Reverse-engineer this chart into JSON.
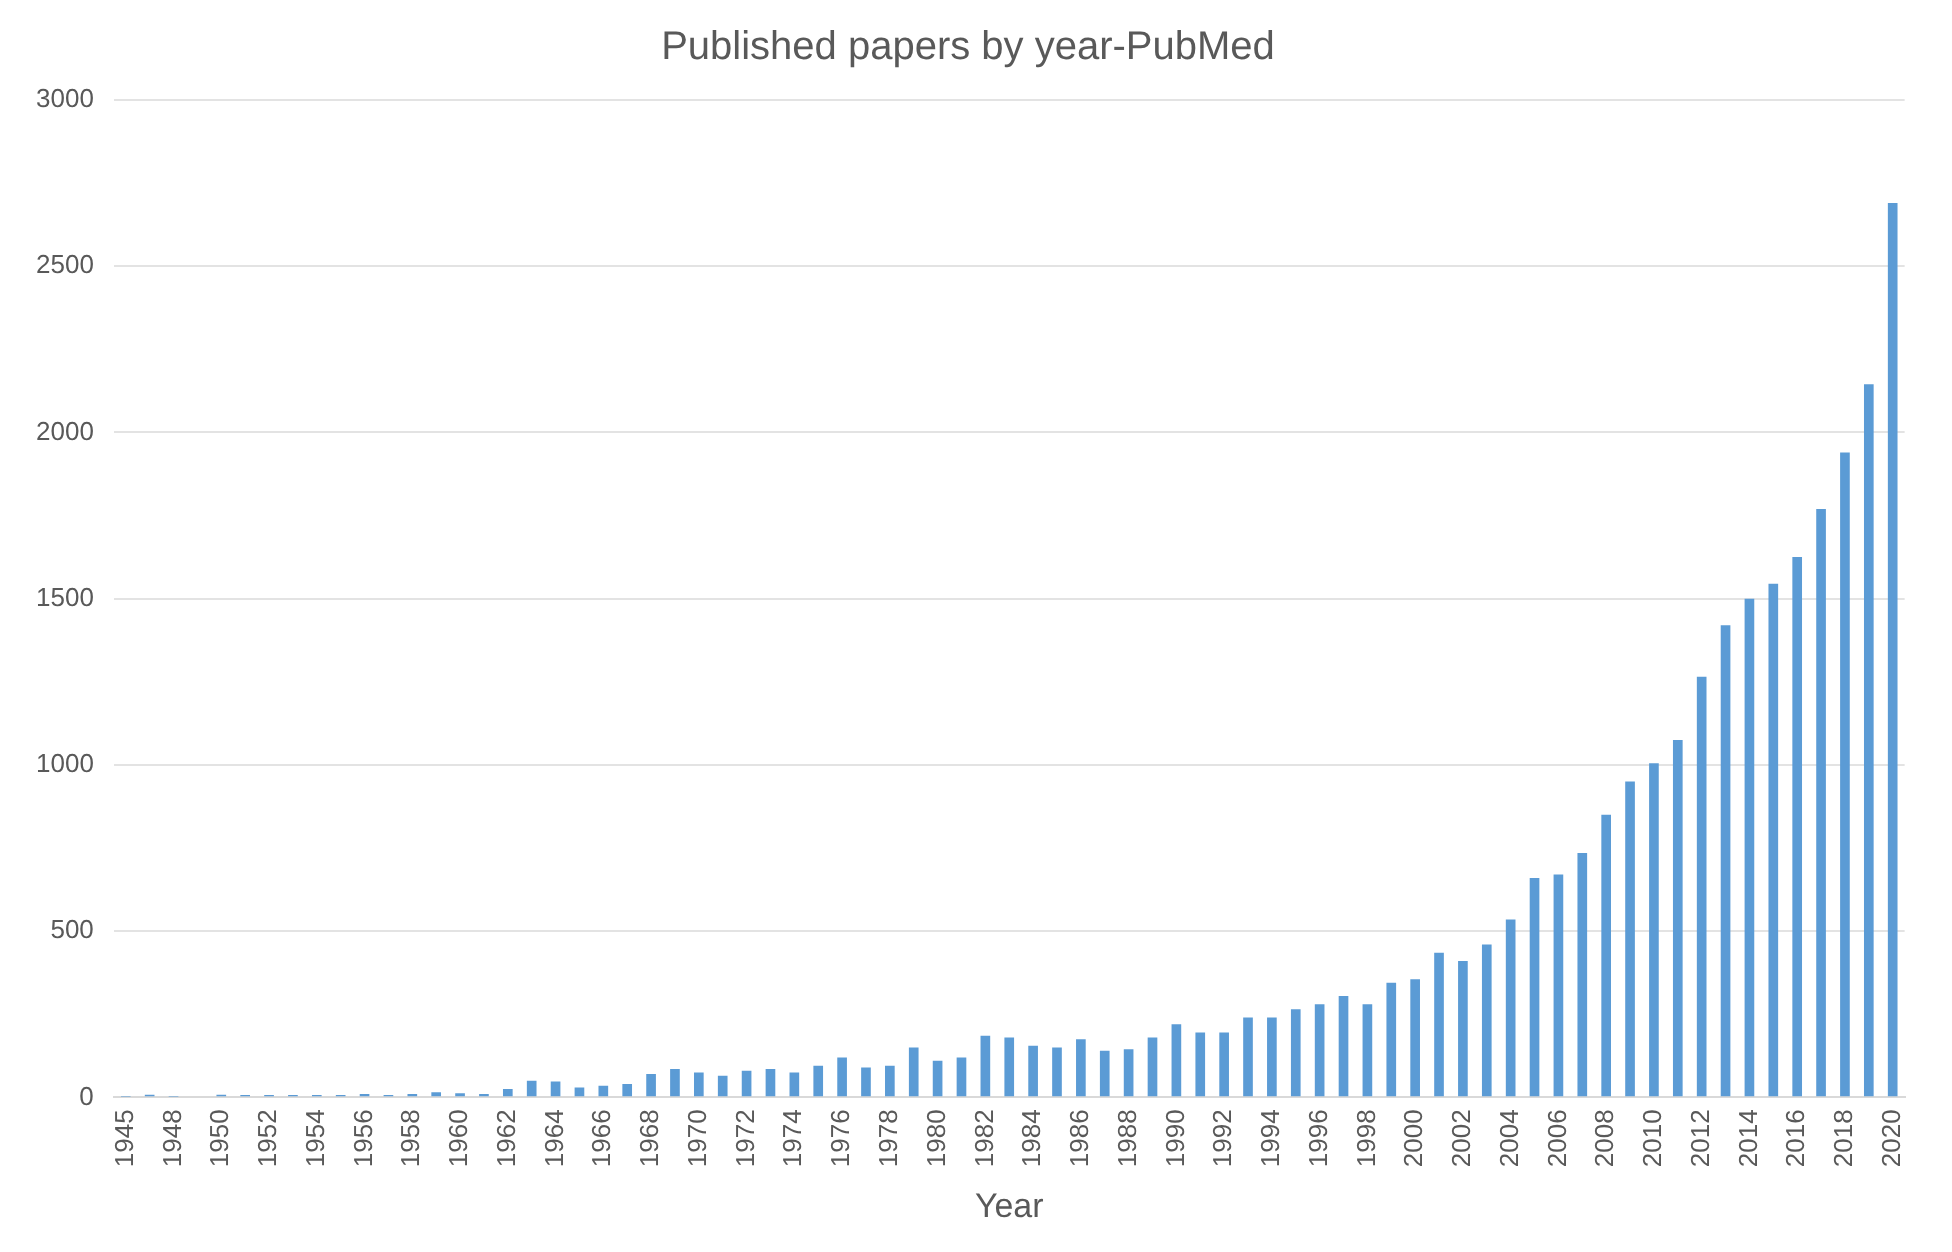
{
  "chart_data": {
    "type": "bar",
    "title": "Published papers by year-PubMed",
    "xlabel": "Year",
    "categories": [
      "1945",
      null,
      "1948",
      null,
      "1950",
      null,
      "1952",
      null,
      "1954",
      null,
      "1956",
      null,
      "1958",
      null,
      "1960",
      null,
      "1962",
      null,
      "1964",
      null,
      "1966",
      null,
      "1968",
      null,
      "1970",
      null,
      "1972",
      null,
      "1974",
      null,
      "1976",
      null,
      "1978",
      null,
      "1980",
      null,
      "1982",
      null,
      "1984",
      null,
      "1986",
      null,
      "1988",
      null,
      "1990",
      null,
      "1992",
      null,
      "1994",
      null,
      "1996",
      null,
      "1998",
      null,
      "2000",
      null,
      "2002",
      null,
      "2004",
      null,
      "2006",
      null,
      "2008",
      null,
      "2010",
      null,
      "2012",
      null,
      "2014",
      null,
      "2016",
      null,
      "2018",
      null,
      "2020"
    ],
    "values": [
      2,
      8,
      2,
      3,
      8,
      7,
      7,
      7,
      7,
      7,
      10,
      7,
      10,
      15,
      12,
      10,
      25,
      50,
      48,
      30,
      35,
      40,
      70,
      85,
      75,
      65,
      80,
      85,
      75,
      95,
      120,
      90,
      95,
      150,
      110,
      120,
      185,
      180,
      155,
      150,
      175,
      140,
      145,
      180,
      220,
      195,
      195,
      240,
      240,
      265,
      280,
      305,
      280,
      345,
      355,
      435,
      410,
      460,
      535,
      660,
      670,
      735,
      850,
      950,
      1005,
      1075,
      1265,
      1420,
      1500,
      1545,
      1625,
      1770,
      1940,
      2145,
      2690
    ],
    "color": "#5b9bd5",
    "ylim": [
      0,
      3000
    ],
    "yticks": [
      0,
      500,
      1000,
      1500,
      2000,
      2500,
      3000
    ],
    "grid": "y",
    "legend": false
  }
}
